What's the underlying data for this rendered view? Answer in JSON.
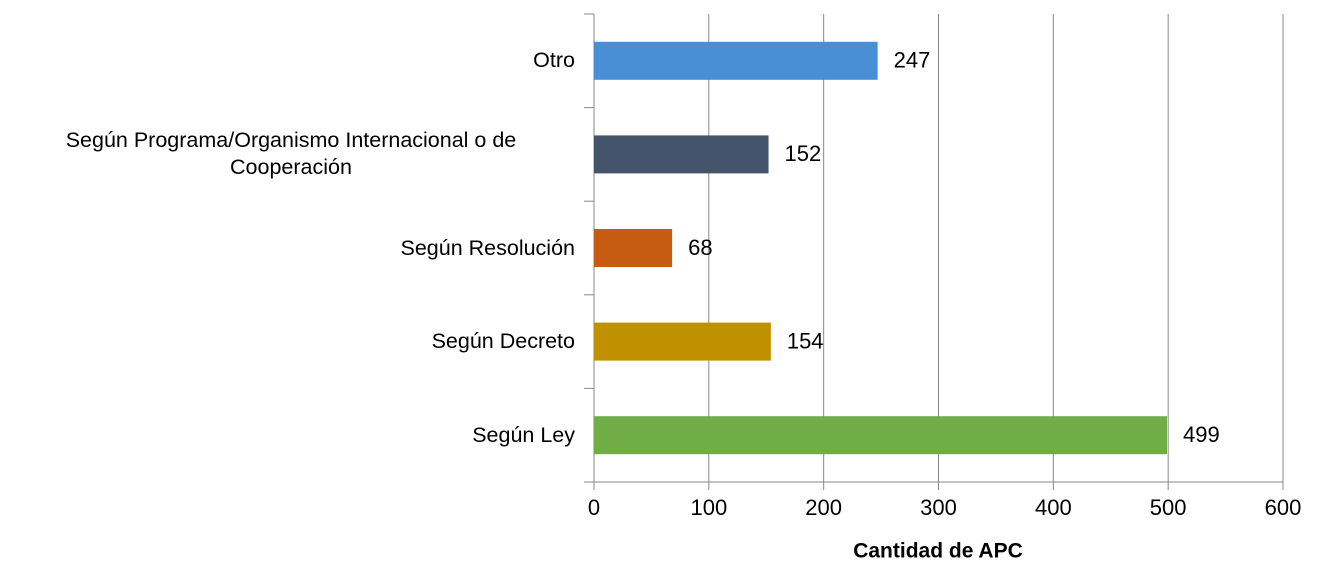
{
  "chart_data": {
    "type": "bar",
    "orientation": "horizontal",
    "categories": [
      "Otro",
      "Según Programa/Organismo Internacional o de Cooperación",
      "Según Resolución",
      "Según Decreto",
      "Según Ley"
    ],
    "values": [
      247,
      152,
      68,
      154,
      499
    ],
    "colors": [
      "#4a8fd6",
      "#44546a",
      "#c55a11",
      "#bf9000",
      "#70ad47"
    ],
    "xlabel": "Cantidad de APC",
    "xlim": [
      0,
      600
    ],
    "xticks": [
      0,
      100,
      200,
      300,
      400,
      500,
      600
    ],
    "grid": true
  }
}
